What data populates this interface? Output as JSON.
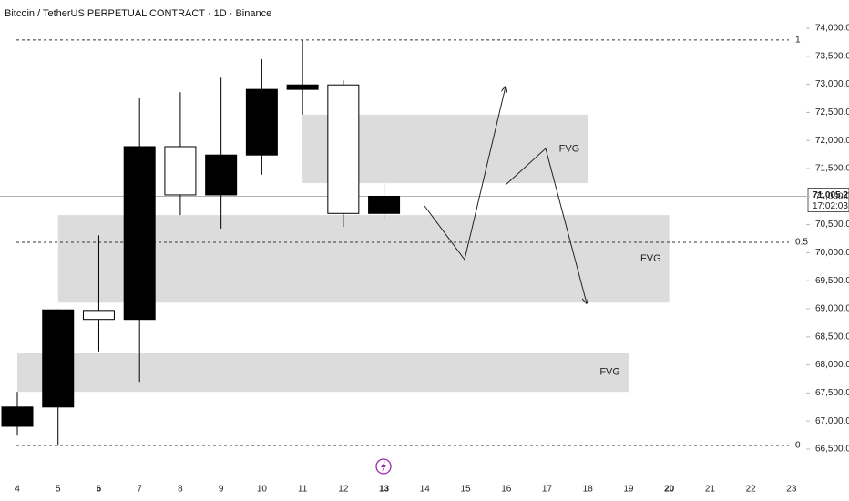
{
  "chart_data": {
    "type": "candlestick",
    "title": "Bitcoin / TetherUS PERPETUAL CONTRACT · 1D · Binance",
    "categories": [
      "4",
      "5",
      "6",
      "7",
      "8",
      "9",
      "10",
      "11",
      "12",
      "13",
      "14",
      "15",
      "16",
      "17",
      "18",
      "19",
      "20",
      "21",
      "22",
      "23"
    ],
    "open": [
      66906,
      67250,
      68970,
      68810,
      71890,
      71030,
      71740,
      72910,
      72990,
      70700,
      null,
      null,
      null,
      null,
      null,
      null,
      null,
      null,
      null,
      null
    ],
    "high": [
      67520,
      68990,
      70310,
      72750,
      72860,
      73120,
      73450,
      73790,
      73070,
      71240,
      null,
      null,
      null,
      null,
      null,
      null,
      null,
      null,
      null,
      null
    ],
    "low": [
      66740,
      66560,
      68240,
      67700,
      70670,
      70430,
      71390,
      72460,
      70460,
      70590,
      null,
      null,
      null,
      null,
      null,
      null,
      null,
      null,
      null,
      null
    ],
    "close": [
      67250,
      68980,
      68810,
      71890,
      71030,
      71740,
      72910,
      72990,
      70700,
      71005.2,
      null,
      null,
      null,
      null,
      null,
      null,
      null,
      null,
      null,
      null
    ],
    "up_color": "#000000",
    "down_color": "#ffffff",
    "ylim": [
      66500,
      74000
    ],
    "yticks": [
      {
        "value": 66500,
        "label": "66,500.0"
      },
      {
        "value": 67000,
        "label": "67,000.0"
      },
      {
        "value": 67500,
        "label": "67,500.0"
      },
      {
        "value": 68000,
        "label": "68,000.0"
      },
      {
        "value": 68500,
        "label": "68,500.0"
      },
      {
        "value": 69000,
        "label": "69,000.0"
      },
      {
        "value": 69500,
        "label": "69,500.0"
      },
      {
        "value": 70000,
        "label": "70,000.0"
      },
      {
        "value": 70500,
        "label": "70,500.0"
      },
      {
        "value": 71000,
        "label": "71,000.0"
      },
      {
        "value": 71500,
        "label": "71,500.0"
      },
      {
        "value": 72000,
        "label": "72,000.0"
      },
      {
        "value": 72500,
        "label": "72,500.0"
      },
      {
        "value": 73000,
        "label": "73,000.0"
      },
      {
        "value": 73500,
        "label": "73,500.0"
      },
      {
        "value": 74000,
        "label": "74,000.0"
      }
    ],
    "current_price": {
      "value": 71005.2,
      "label": "71,005.2"
    },
    "countdown": "17:02:03",
    "fib_levels": [
      {
        "value": 73790,
        "label": "1"
      },
      {
        "value": 70185,
        "label": "0.5"
      },
      {
        "value": 66565,
        "label": "0"
      }
    ],
    "zones": [
      {
        "label": "FVG",
        "start": 7,
        "end": 14,
        "top": 72460,
        "bottom": 71240
      },
      {
        "label": "FVG",
        "start": 1,
        "end": 16,
        "top": 70670,
        "bottom": 69110
      },
      {
        "label": "FVG",
        "start": 0,
        "end": 15,
        "top": 68220,
        "bottom": 67520
      }
    ]
  }
}
